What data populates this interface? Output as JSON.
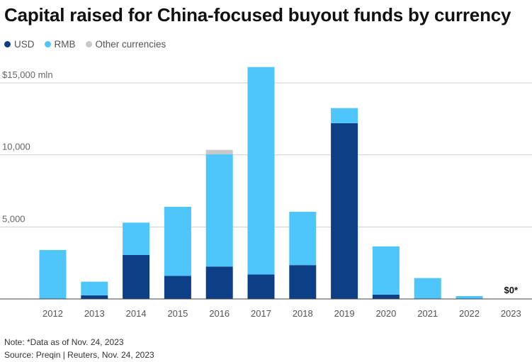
{
  "title": "Capital raised for China-focused buyout funds by currency",
  "colors": {
    "USD": "#0d3f86",
    "RMB": "#4fc6fb",
    "Other currencies": "#c9c9c9"
  },
  "chart_data": {
    "type": "bar",
    "stacked": true,
    "categories": [
      "2012",
      "2013",
      "2014",
      "2015",
      "2016",
      "2017",
      "2018",
      "2019",
      "2020",
      "2021",
      "2022",
      "2023"
    ],
    "series": [
      {
        "name": "USD",
        "values": [
          0,
          250,
          3050,
          1600,
          2250,
          1700,
          2350,
          12200,
          300,
          0,
          0,
          0
        ]
      },
      {
        "name": "RMB",
        "values": [
          3400,
          950,
          2250,
          4800,
          7800,
          14400,
          3700,
          1050,
          3350,
          1450,
          200,
          0
        ]
      },
      {
        "name": "Other currencies",
        "values": [
          0,
          0,
          0,
          0,
          300,
          0,
          0,
          0,
          0,
          0,
          0,
          0
        ]
      }
    ],
    "ylim": [
      0,
      15000
    ],
    "yticks": [
      {
        "value": 15000,
        "label": "$15,000 mln"
      },
      {
        "value": 10000,
        "label": "10,000"
      },
      {
        "value": 5000,
        "label": "5,000"
      }
    ],
    "annotations": [
      {
        "category": "2023",
        "text": "$0*"
      }
    ],
    "grid": true,
    "legend_position": "top-left"
  },
  "notes": {
    "note": "Note: *Data as of Nov. 24, 2023",
    "source": "Source: Preqin | Reuters, Nov. 24, 2023"
  }
}
